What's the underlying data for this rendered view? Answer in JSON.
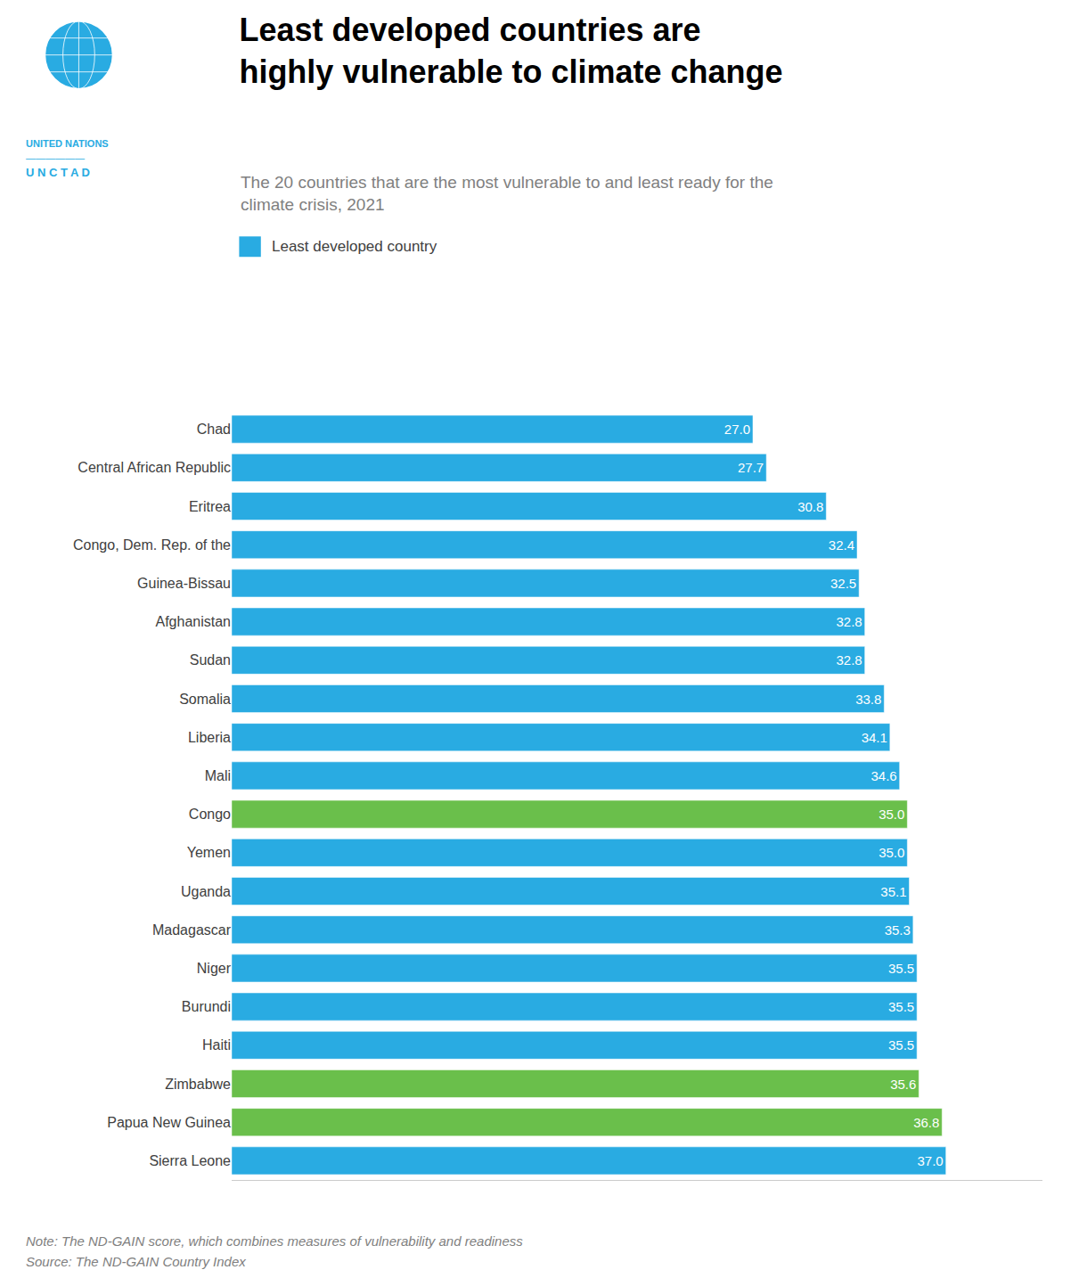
{
  "chart_data": {
    "type": "bar",
    "orientation": "horizontal",
    "title": "Least developed countries are\nhighly vulnerable to climate change",
    "subtitle": "The 20 countries that are the most vulnerable to and least ready for the\nclimate crisis, 2021",
    "categories": [
      "Chad",
      "Central African Republic",
      "Eritrea",
      "Congo, Dem. Rep. of the",
      "Guinea-Bissau",
      "Afghanistan",
      "Sudan",
      "Somalia",
      "Liberia",
      "Mali",
      "Congo",
      "Yemen",
      "Uganda",
      "Madagascar",
      "Niger",
      "Burundi",
      "Haiti",
      "Zimbabwe",
      "Papua New Guinea",
      "Sierra Leone"
    ],
    "values": [
      27.0,
      27.7,
      30.8,
      32.4,
      32.5,
      32.8,
      32.8,
      33.8,
      34.1,
      34.6,
      35.0,
      35.0,
      35.1,
      35.3,
      35.5,
      35.5,
      35.5,
      35.6,
      36.8,
      37.0
    ],
    "value_labels": [
      "27.0",
      "27.7",
      "30.8",
      "32.4",
      "32.5",
      "32.8",
      "32.8",
      "33.8",
      "34.1",
      "34.6",
      "35.0",
      "35.0",
      "35.1",
      "35.3",
      "35.5",
      "35.5",
      "35.5",
      "35.6",
      "36.8",
      "37.0"
    ],
    "colors": [
      "#29abe2",
      "#29abe2",
      "#29abe2",
      "#29abe2",
      "#29abe2",
      "#29abe2",
      "#29abe2",
      "#29abe2",
      "#29abe2",
      "#29abe2",
      "#6abf4b",
      "#29abe2",
      "#29abe2",
      "#29abe2",
      "#29abe2",
      "#29abe2",
      "#29abe2",
      "#6abf4b",
      "#6abf4b",
      "#29abe2"
    ],
    "xlim": [
      0,
      42
    ],
    "data_labels": true,
    "tick_labels": "y",
    "grid": false,
    "annotations": [
      {
        "text": "Least developed country",
        "color": "#29abe2",
        "marker": "square"
      },
      {
        "text": "UNITED NATIONS",
        "color": "#29abe2"
      },
      {
        "text": "——————",
        "color": "#29abe2"
      },
      {
        "text": "U N C T A D",
        "color": "#29abe2"
      },
      {
        "text": "Note: The ND-GAIN score, which combines measures of vulnerability and readiness"
      },
      {
        "text": "Source: The ND-GAIN Country Index"
      }
    ]
  }
}
